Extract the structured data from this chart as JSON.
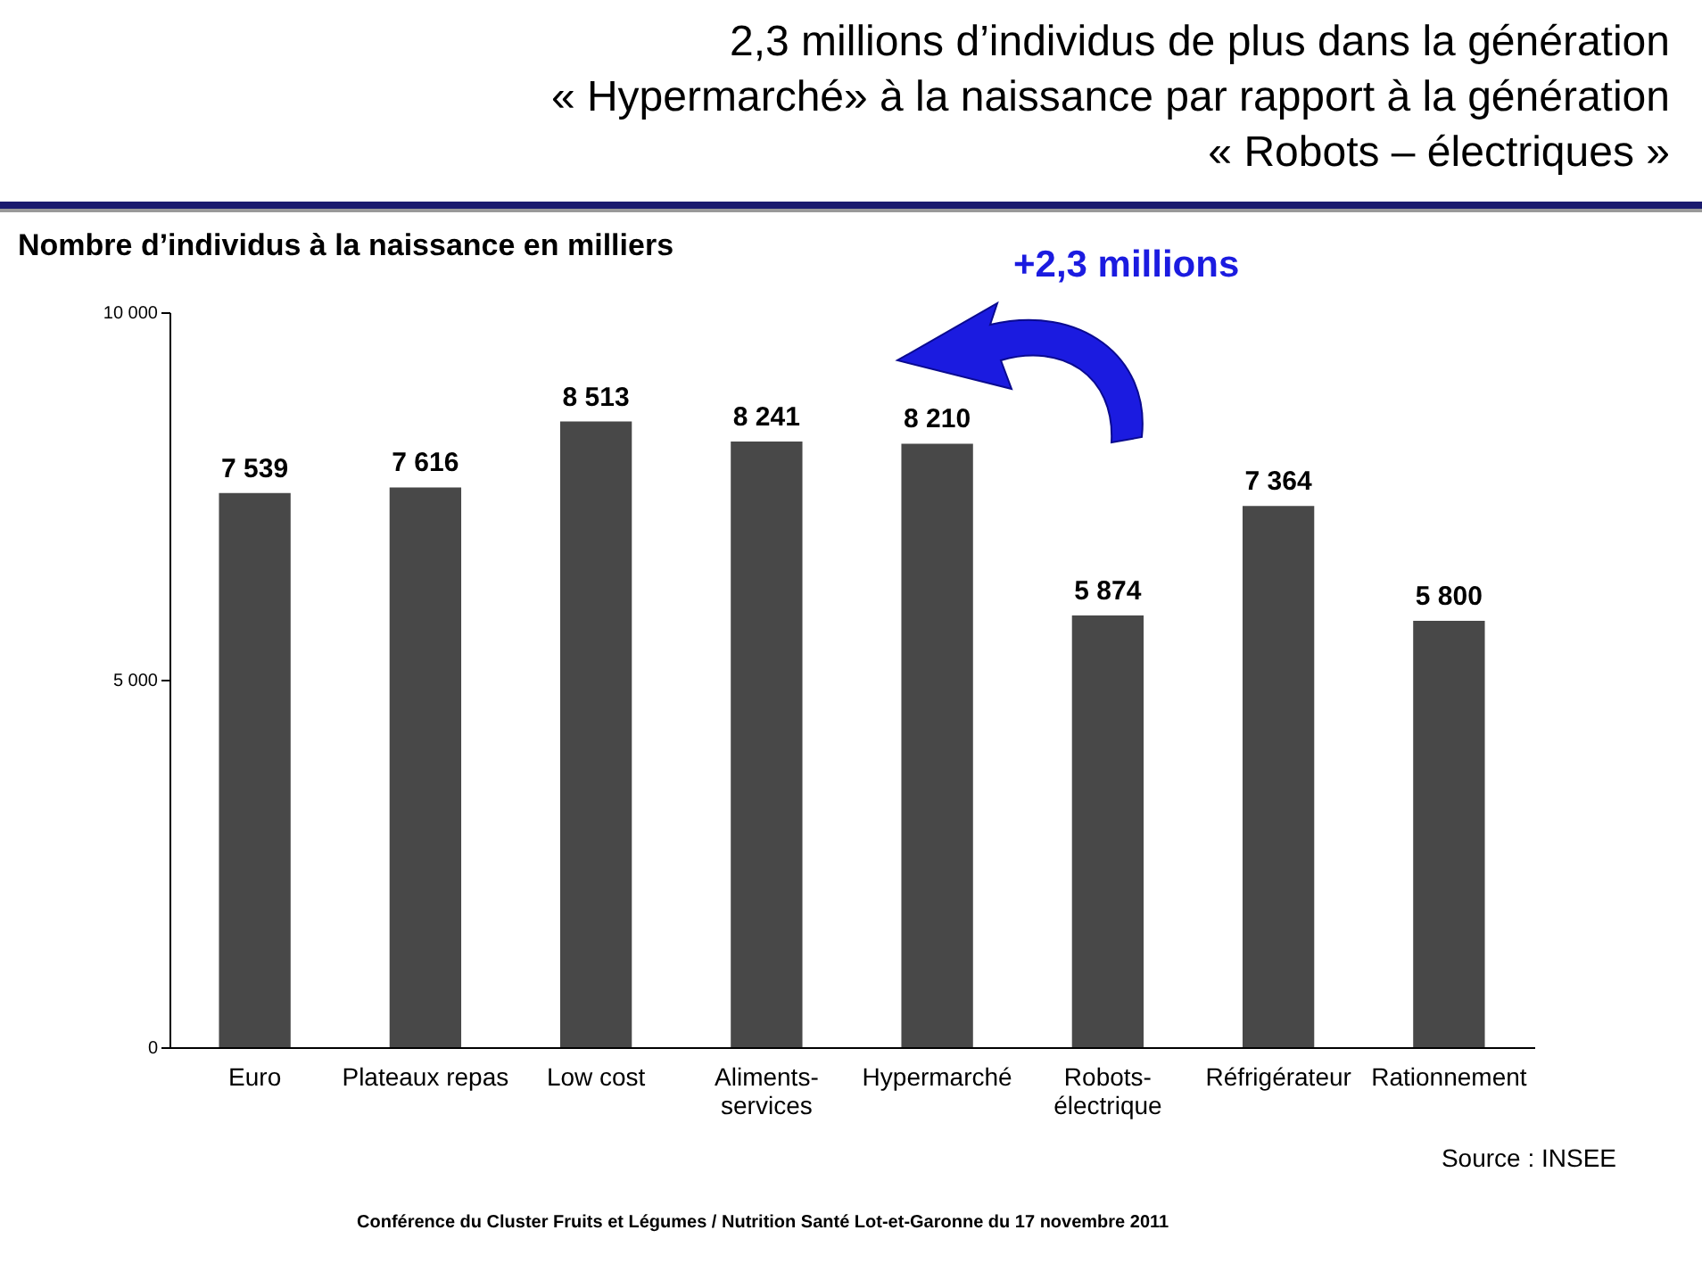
{
  "chart_data": {
    "type": "bar",
    "title": "2,3 millions d’individus de plus dans la génération\n« Hypermarché» à la naissance par rapport à la génération\n« Robots – électriques »",
    "ylabel": "Nombre d’individus à la naissance en milliers",
    "categories": [
      "Euro",
      "Plateaux repas",
      "Low cost",
      "Aliments-services",
      "Hypermarché",
      "Robots-électrique",
      "Réfrigérateur",
      "Rationnement"
    ],
    "values": [
      7539,
      7616,
      8513,
      8241,
      8210,
      5874,
      7364,
      5800
    ],
    "value_labels": [
      "7 539",
      "7 616",
      "8 513",
      "8 241",
      "8 210",
      "5 874",
      "7 364",
      "5 800"
    ],
    "color": "#484848",
    "ylim": [
      0,
      10000
    ],
    "yticks": [
      0,
      {
        "value": 5000,
        "label": "5 000"
      },
      {
        "value": 10000,
        "label": "10 000"
      }
    ],
    "grid": false,
    "annotations": [
      "+2,3 millions",
      "Source : INSEE",
      "Conférence du Cluster Fruits et Légumes / Nutrition Santé Lot-et-Garonne du 17 novembre 2011"
    ]
  }
}
